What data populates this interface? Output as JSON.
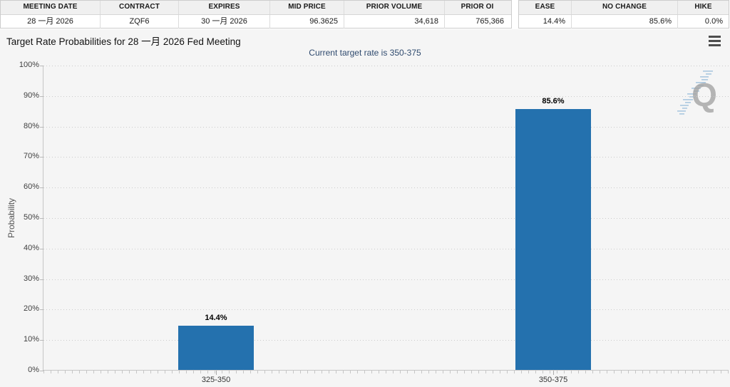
{
  "chart_data": {
    "type": "bar",
    "categories": [
      "325-350",
      "350-375"
    ],
    "values": [
      14.4,
      85.6
    ],
    "data_labels": [
      "14.4%",
      "85.6%"
    ],
    "title": "Target Rate Probabilities for 28 一月 2026 Fed Meeting",
    "subtitle": "Current target rate is 350-375",
    "xlabel": "",
    "ylabel": "Probability",
    "ylim": [
      0,
      100
    ],
    "ytick_step": 10,
    "ytick_suffix": "%",
    "grid": "dotted-horizontal",
    "legend": "none",
    "bar_color": "#2471ae",
    "background": "#f5f5f5"
  },
  "tables": {
    "main": {
      "columns": [
        {
          "label": "MEETING DATE",
          "value": "28 一月 2026"
        },
        {
          "label": "CONTRACT",
          "value": "ZQF6"
        },
        {
          "label": "EXPIRES",
          "value": "30 一月 2026"
        },
        {
          "label": "MID PRICE",
          "value": "96.3625"
        },
        {
          "label": "PRIOR VOLUME",
          "value": "34,618"
        },
        {
          "label": "PRIOR OI",
          "value": "765,366"
        }
      ]
    },
    "probs": {
      "columns": [
        {
          "label": "EASE",
          "value": "14.4%"
        },
        {
          "label": "NO CHANGE",
          "value": "85.6%"
        },
        {
          "label": "HIKE",
          "value": "0.0%"
        }
      ]
    }
  },
  "chart": {
    "menu_icon": "hamburger-icon",
    "watermark_letter": "Q"
  }
}
